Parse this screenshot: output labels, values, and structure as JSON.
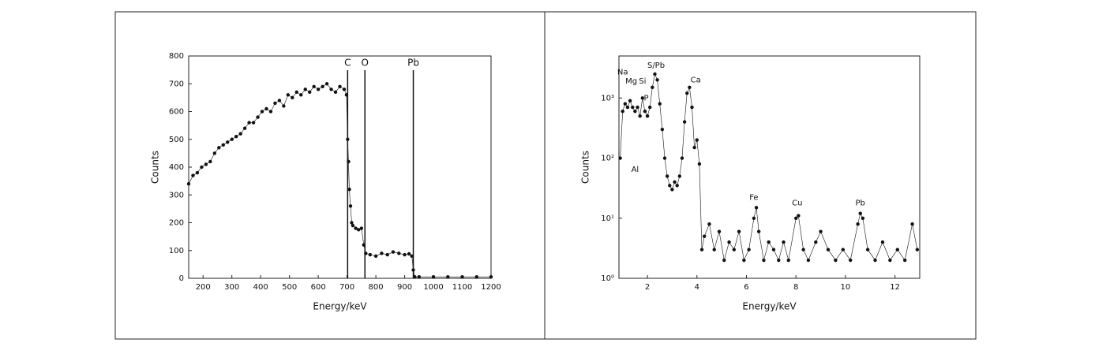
{
  "chart_data": [
    {
      "type": "line",
      "x_label": "Energy/keV",
      "y_label": "Counts",
      "color": "#111111",
      "x": [
        150,
        165,
        180,
        195,
        210,
        225,
        240,
        255,
        270,
        285,
        300,
        315,
        330,
        345,
        360,
        375,
        390,
        405,
        420,
        435,
        450,
        465,
        480,
        495,
        510,
        525,
        540,
        555,
        570,
        585,
        600,
        615,
        630,
        645,
        660,
        675,
        690,
        698,
        702,
        705,
        708,
        712,
        716,
        720,
        730,
        740,
        750,
        758,
        765,
        780,
        800,
        820,
        840,
        860,
        880,
        900,
        915,
        925,
        930,
        935,
        950,
        1000,
        1050,
        1100,
        1150,
        1200
      ],
      "values": [
        340,
        370,
        380,
        400,
        410,
        420,
        450,
        470,
        480,
        490,
        500,
        510,
        520,
        540,
        560,
        560,
        580,
        600,
        610,
        600,
        630,
        640,
        620,
        660,
        650,
        670,
        660,
        680,
        670,
        690,
        680,
        690,
        700,
        680,
        670,
        690,
        680,
        660,
        500,
        420,
        320,
        260,
        200,
        190,
        180,
        175,
        180,
        120,
        90,
        85,
        80,
        90,
        85,
        95,
        90,
        85,
        88,
        80,
        30,
        5,
        5,
        5,
        5,
        5,
        5,
        5
      ],
      "xlim": [
        150,
        1200
      ],
      "ylim": [
        0,
        800
      ],
      "xticks": [
        200,
        300,
        400,
        500,
        600,
        700,
        800,
        900,
        1000,
        1100,
        1200
      ],
      "yticks": [
        0,
        100,
        200,
        300,
        400,
        500,
        600,
        700,
        800
      ],
      "markers": [
        {
          "label": "C",
          "x": 702
        },
        {
          "label": "O",
          "x": 762
        },
        {
          "label": "Pb",
          "x": 930
        }
      ]
    },
    {
      "type": "line",
      "x_label": "Energy/keV",
      "y_label": "Counts",
      "color": "#111111",
      "log_y": true,
      "x": [
        0.9,
        1.0,
        1.1,
        1.2,
        1.3,
        1.4,
        1.5,
        1.6,
        1.7,
        1.8,
        1.9,
        2.0,
        2.1,
        2.2,
        2.3,
        2.4,
        2.5,
        2.6,
        2.7,
        2.8,
        2.9,
        3.0,
        3.1,
        3.2,
        3.3,
        3.4,
        3.5,
        3.6,
        3.7,
        3.8,
        3.9,
        4.0,
        4.1,
        4.2,
        4.3,
        4.5,
        4.7,
        4.9,
        5.1,
        5.3,
        5.5,
        5.7,
        5.9,
        6.1,
        6.3,
        6.4,
        6.5,
        6.7,
        6.9,
        7.1,
        7.3,
        7.5,
        7.7,
        8.0,
        8.1,
        8.3,
        8.5,
        8.8,
        9.0,
        9.3,
        9.6,
        9.9,
        10.2,
        10.5,
        10.6,
        10.7,
        10.9,
        11.2,
        11.5,
        11.8,
        12.1,
        12.4,
        12.7,
        12.9
      ],
      "values": [
        100,
        600,
        800,
        700,
        900,
        700,
        600,
        700,
        500,
        1000,
        600,
        500,
        700,
        1500,
        2500,
        2000,
        800,
        300,
        100,
        50,
        35,
        30,
        40,
        35,
        50,
        100,
        400,
        1200,
        1500,
        700,
        150,
        200,
        80,
        3,
        5,
        8,
        3,
        6,
        2,
        4,
        3,
        6,
        2,
        3,
        10,
        15,
        6,
        2,
        4,
        3,
        2,
        4,
        2,
        10,
        11,
        3,
        2,
        4,
        6,
        3,
        2,
        3,
        2,
        8,
        12,
        10,
        3,
        2,
        4,
        2,
        3,
        2,
        8,
        3
      ],
      "xlim": [
        0.85,
        13
      ],
      "ylim": [
        1,
        5000
      ],
      "xticks": [
        2,
        4,
        6,
        8,
        10,
        12
      ],
      "yticks": [
        {
          "value": 1,
          "label": "10⁰"
        },
        {
          "value": 10,
          "label": "10¹"
        },
        {
          "value": 100,
          "label": "10²"
        },
        {
          "value": 1000,
          "label": "10³"
        }
      ],
      "labels": [
        {
          "label": "Na",
          "x": 1.0,
          "y": 2700
        },
        {
          "label": "Mg",
          "x": 1.35,
          "y": 1900
        },
        {
          "label": "Si",
          "x": 1.8,
          "y": 1900
        },
        {
          "label": "P",
          "x": 1.95,
          "y": 1000
        },
        {
          "label": "S/Pb",
          "x": 2.35,
          "y": 3500
        },
        {
          "label": "Ca",
          "x": 3.95,
          "y": 2000
        },
        {
          "label": "Al",
          "x": 1.5,
          "y": 65
        },
        {
          "label": "Fe",
          "x": 6.3,
          "y": 22
        },
        {
          "label": "Cu",
          "x": 8.05,
          "y": 18
        },
        {
          "label": "Pb",
          "x": 10.6,
          "y": 18
        }
      ]
    }
  ]
}
